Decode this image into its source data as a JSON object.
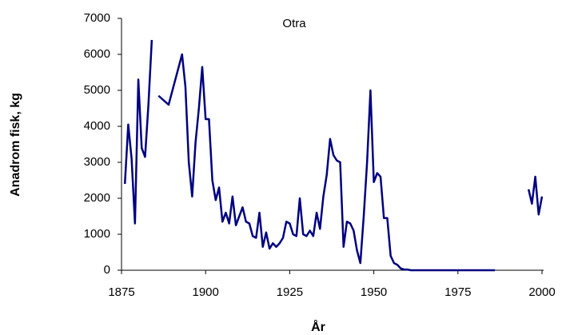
{
  "chart_data": {
    "type": "line",
    "title": "Otra",
    "xlabel": "År",
    "ylabel": "Anadrom fisk, kg",
    "x": [
      1876,
      1877,
      1878,
      1879,
      1880,
      1881,
      1882,
      1883,
      1884,
      1885,
      1886,
      1889,
      1893,
      1894,
      1895,
      1896,
      1897,
      1898,
      1899,
      1900,
      1901,
      1902,
      1903,
      1904,
      1905,
      1906,
      1907,
      1908,
      1909,
      1910,
      1911,
      1912,
      1913,
      1914,
      1915,
      1916,
      1917,
      1918,
      1919,
      1920,
      1921,
      1922,
      1923,
      1924,
      1925,
      1926,
      1927,
      1928,
      1929,
      1930,
      1931,
      1932,
      1933,
      1934,
      1935,
      1936,
      1937,
      1938,
      1939,
      1940,
      1941,
      1942,
      1943,
      1944,
      1945,
      1946,
      1947,
      1948,
      1949,
      1950,
      1951,
      1952,
      1953,
      1954,
      1955,
      1956,
      1957,
      1958,
      1959,
      1960,
      1961,
      1962,
      1963,
      1964,
      1965,
      1966,
      1967,
      1968,
      1969,
      1970,
      1971,
      1972,
      1973,
      1974,
      1975,
      1976,
      1977,
      1978,
      1979,
      1980,
      1981,
      1982,
      1983,
      1984,
      1985,
      1986,
      1987,
      1996,
      1997,
      1998,
      1999,
      2000
    ],
    "values": [
      2400,
      4050,
      3100,
      1300,
      5300,
      3400,
      3150,
      4600,
      6400,
      null,
      4850,
      4600,
      6000,
      5100,
      3000,
      2050,
      3550,
      4500,
      5650,
      4200,
      4200,
      2500,
      1950,
      2300,
      1350,
      1600,
      1300,
      2050,
      1250,
      1500,
      1750,
      1350,
      1300,
      950,
      900,
      1600,
      650,
      1050,
      600,
      750,
      650,
      750,
      900,
      1350,
      1300,
      1000,
      950,
      2000,
      1000,
      950,
      1100,
      950,
      1600,
      1150,
      2050,
      2650,
      3650,
      3200,
      3050,
      3000,
      650,
      1350,
      1300,
      1100,
      550,
      200,
      1500,
      3000,
      5000,
      2450,
      2700,
      2600,
      1450,
      1450,
      400,
      200,
      150,
      50,
      20,
      20,
      0,
      0,
      0,
      0,
      0,
      0,
      0,
      0,
      0,
      0,
      0,
      0,
      0,
      0,
      0,
      0,
      0,
      0,
      0,
      0,
      0,
      0,
      0,
      0,
      0,
      0,
      null,
      2250,
      1850,
      2600,
      1550,
      2050
    ],
    "color": "#000080",
    "xlim": [
      1875,
      2000
    ],
    "xticks": [
      1875,
      1900,
      1925,
      1950,
      1975,
      2000
    ],
    "ylim": [
      0,
      7000
    ],
    "yticks": [
      0,
      1000,
      2000,
      3000,
      4000,
      5000,
      6000,
      7000
    ],
    "grid": false
  }
}
